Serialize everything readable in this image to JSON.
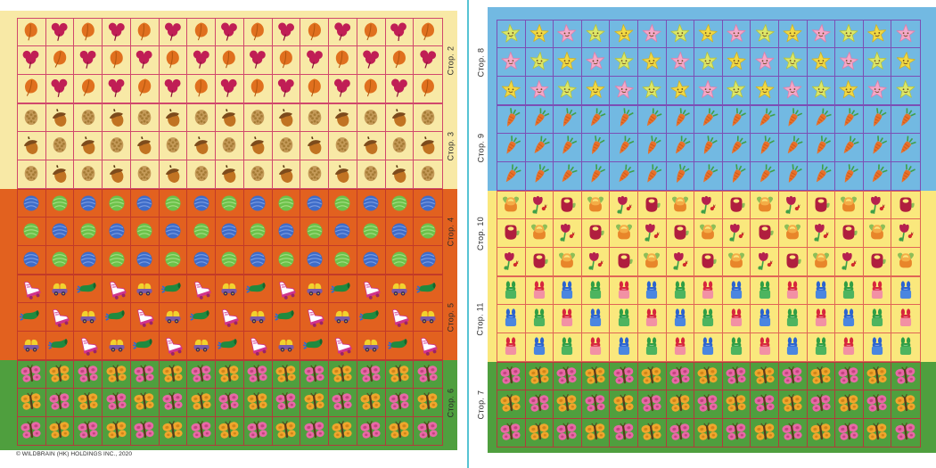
{
  "copyright": "© WILDBRAIN (HK) HOLDINGS INC., 2020",
  "columns": 15,
  "colors": {
    "cream": "#f8e9a6",
    "orange": "#e2611f",
    "green": "#4f9f3e",
    "blue": "#72b9e2",
    "yellow": "#fae87d",
    "divider": "#56c3d3",
    "label_text": "#2b2b2b",
    "line_crimson": "#d0486c",
    "line_red": "#c23a28",
    "line_darkred": "#b03c3c",
    "line_purple": "#7b4fb5",
    "line_salmon": "#e06555"
  },
  "sticker_colors": {
    "leaf_orange": "#e0701e",
    "leaf_orange_vein": "#b3560e",
    "leaf_crimson": "#c01e55",
    "leaf_crimson_stem": "#8a1238",
    "pinecone": "#c49a58",
    "pinecone_scale": "#a47a34",
    "acorn_body": "#c17322",
    "acorn_cap": "#7c4b1c",
    "acorn_stem": "#5a3a12",
    "ball_blue": "#3e6cc9",
    "ball_blue_line": "#7b9de2",
    "ball_green": "#6cc24a",
    "ball_green_line": "#a5dd85",
    "skate_boot": "#ffffff",
    "skate_main": "#d0338c",
    "skate_wheel": "#9c2368",
    "car_top": "#f2d22e",
    "car_base": "#7a5aa8",
    "car_wheel": "#3a2a5a",
    "shoe_main": "#1f8a3f",
    "shoe_dark": "#14662c",
    "shoe_blue": "#2b6bd4",
    "butterfly_pink": "#e868a6",
    "butterfly_pink_dark": "#c2447f",
    "butterfly_orange": "#f0a62c",
    "butterfly_orange_dark": "#cf851a",
    "butterfly_body": "#5a3a1b",
    "star_yellow": "#f2d943",
    "star_yellow_edge": "#cdb32a",
    "star_lime": "#dde768",
    "star_lime_edge": "#b4c43f",
    "star_pink": "#f4a8c8",
    "star_pink_edge": "#df7fab",
    "star_face": "#6b4a1f",
    "carrot": "#e8702a",
    "carrot_line": "#c4571c",
    "carrot_top": "#3fa048",
    "basket_orange": "#e8862a",
    "basket_orange_lid": "#f4ad47",
    "basket_leaf": "#8cbe58",
    "tulip": "#b5204e",
    "tulip_stem": "#3fa048",
    "bug": "#cf2b2b",
    "basket_maroon": "#b01e3e",
    "gift_green_main": "#2f9e44",
    "gift_green_box": "#4db45f",
    "gift_red_main": "#d7263d",
    "gift_red_box": "#f291a4",
    "gift_blue_main": "#2b63cf",
    "gift_blue_box": "#4a86e0"
  },
  "left_panel": {
    "labels": [
      "Стор. 2",
      "Стор. 3",
      "Стор. 4",
      "Стор. 5",
      "Стор. 6"
    ],
    "sticker_groups": [
      {
        "name": "autumn-leaves",
        "line": "line_crimson",
        "rows": [
          {
            "cycle": [
              "leaf-orange",
              "leaf-crimson"
            ],
            "start": 0
          },
          {
            "cycle": [
              "leaf-orange",
              "leaf-crimson"
            ],
            "start": 1
          },
          {
            "cycle": [
              "leaf-orange",
              "leaf-crimson"
            ],
            "start": 0
          }
        ]
      },
      {
        "name": "acorns",
        "line": "line_crimson",
        "rows": [
          {
            "cycle": [
              "pinecone",
              "acorn"
            ],
            "start": 0
          },
          {
            "cycle": [
              "pinecone",
              "acorn"
            ],
            "start": 1
          },
          {
            "cycle": [
              "pinecone",
              "acorn"
            ],
            "start": 0
          }
        ]
      },
      {
        "name": "balls",
        "line": "line_red",
        "rows": [
          {
            "cycle": [
              "ball-blue",
              "ball-green"
            ],
            "start": 0
          },
          {
            "cycle": [
              "ball-blue",
              "ball-green"
            ],
            "start": 1
          },
          {
            "cycle": [
              "ball-blue",
              "ball-green"
            ],
            "start": 0
          }
        ]
      },
      {
        "name": "toys",
        "line": "line_red",
        "rows": [
          {
            "cycle": [
              "skate",
              "car",
              "shoe"
            ],
            "start": 0
          },
          {
            "cycle": [
              "skate",
              "car",
              "shoe"
            ],
            "start": 2
          },
          {
            "cycle": [
              "skate",
              "car",
              "shoe"
            ],
            "start": 1
          }
        ]
      },
      {
        "name": "butterflies",
        "line": "line_darkred",
        "rows": [
          {
            "cycle": [
              "butterfly-pink",
              "butterfly-orange"
            ],
            "start": 0
          },
          {
            "cycle": [
              "butterfly-pink",
              "butterfly-orange"
            ],
            "start": 1
          },
          {
            "cycle": [
              "butterfly-pink",
              "butterfly-orange"
            ],
            "start": 0
          }
        ]
      }
    ]
  },
  "right_panel": {
    "labels": [
      "Стор. 8",
      "Стор. 9",
      "Стор. 10",
      "Стор. 11",
      "Стор. 7"
    ],
    "sticker_groups": [
      {
        "name": "stars",
        "line": "line_purple",
        "rows": [
          {
            "cycle": [
              "star-lime",
              "star-yellow",
              "star-pink"
            ],
            "start": 0
          },
          {
            "cycle": [
              "star-lime",
              "star-yellow",
              "star-pink"
            ],
            "start": 2
          },
          {
            "cycle": [
              "star-lime",
              "star-yellow",
              "star-pink"
            ],
            "start": 1
          }
        ]
      },
      {
        "name": "carrots",
        "line": "line_purple",
        "rows": [
          {
            "cycle": [
              "carrot"
            ],
            "start": 0
          },
          {
            "cycle": [
              "carrot"
            ],
            "start": 0
          },
          {
            "cycle": [
              "carrot"
            ],
            "start": 0
          }
        ]
      },
      {
        "name": "baskets-and-flowers",
        "line": "line_salmon",
        "rows": [
          {
            "cycle": [
              "basket-orange",
              "tulip",
              "basket-maroon"
            ],
            "start": 0
          },
          {
            "cycle": [
              "basket-orange",
              "tulip",
              "basket-maroon"
            ],
            "start": 2
          },
          {
            "cycle": [
              "basket-orange",
              "tulip",
              "basket-maroon"
            ],
            "start": 1
          }
        ]
      },
      {
        "name": "gifts",
        "line": "line_salmon",
        "rows": [
          {
            "cycle": [
              "gift-green",
              "gift-red",
              "gift-blue"
            ],
            "start": 0
          },
          {
            "cycle": [
              "gift-green",
              "gift-red",
              "gift-blue"
            ],
            "start": 2
          },
          {
            "cycle": [
              "gift-green",
              "gift-red",
              "gift-blue"
            ],
            "start": 1
          }
        ]
      },
      {
        "name": "butterflies",
        "line": "line_darkred",
        "rows": [
          {
            "cycle": [
              "butterfly-pink",
              "butterfly-orange"
            ],
            "start": 0
          },
          {
            "cycle": [
              "butterfly-pink",
              "butterfly-orange"
            ],
            "start": 1
          },
          {
            "cycle": [
              "butterfly-pink",
              "butterfly-orange"
            ],
            "start": 0
          }
        ]
      }
    ]
  }
}
